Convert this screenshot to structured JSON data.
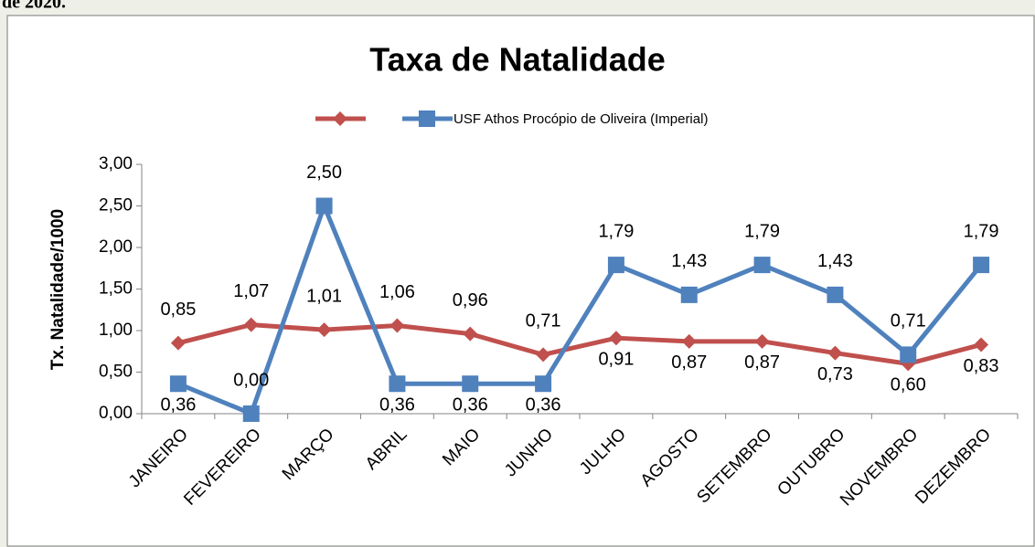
{
  "caption": "de 2020.",
  "chart_data": {
    "type": "line",
    "title": "Taxa de Natalidade",
    "y_label": "Tx. Natalidade/1000",
    "categories": [
      "JANEIRO",
      "FEVEREIRO",
      "MARÇO",
      "ABRIL",
      "MAIO",
      "JUNHO",
      "JULHO",
      "AGOSTO",
      "SETEMBRO",
      "OUTUBRO",
      "NOVEMBRO",
      "DEZEMBRO"
    ],
    "series": [
      {
        "color": "#c0504d",
        "marker": "diamond",
        "values": [
          0.85,
          1.07,
          1.01,
          1.06,
          0.96,
          0.71,
          0.91,
          0.87,
          0.87,
          0.73,
          0.6,
          0.83
        ],
        "value_labels": [
          "0,85",
          "1,07",
          "1,01",
          "1,06",
          "0,96",
          "0,71",
          "0,91",
          "0,87",
          "0,87",
          "0,73",
          "0,60",
          "0,83"
        ]
      },
      {
        "name": "USF Athos Procópio de Oliveira (Imperial)",
        "color": "#4f81bd",
        "marker": "square",
        "values": [
          0.36,
          0,
          2.5,
          0.36,
          0.36,
          0.36,
          1.79,
          1.43,
          1.79,
          1.43,
          0.71,
          1.79
        ],
        "value_labels": [
          "0,36",
          "0,00",
          "2,50",
          "0,36",
          "0,36",
          "0,36",
          "1,79",
          "1,43",
          "1,79",
          "1,43",
          "0,71",
          "1,79"
        ]
      }
    ],
    "ylim": [
      0,
      3
    ],
    "yticks": [
      {
        "value": 0,
        "label": "0,00"
      },
      {
        "value": 0.5,
        "label": "0,50"
      },
      {
        "value": 1,
        "label": "1,00"
      },
      {
        "value": 1.5,
        "label": "1,50"
      },
      {
        "value": 2,
        "label": "2,00"
      },
      {
        "value": 2.5,
        "label": "2,50"
      },
      {
        "value": 3,
        "label": "3,00"
      }
    ]
  }
}
